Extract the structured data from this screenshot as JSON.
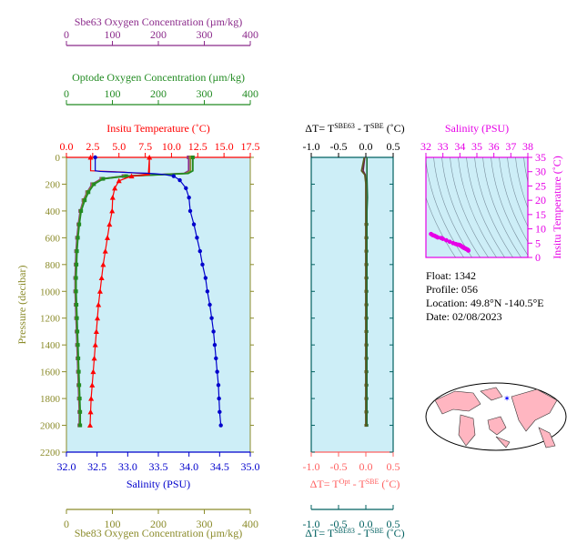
{
  "info": {
    "float": "Float:  1342",
    "profile": "Profile:  056",
    "location": "Location:  49.8°N  -140.5°E",
    "date": "Date:  02/08/2023"
  },
  "colors": {
    "plot_bg": "#cdeef7",
    "temperature": "#ff0000",
    "salinity": "#0000cc",
    "optode_oxygen": "#228b22",
    "sbe63_oxygen": "#8b2a8b",
    "sbe83_oxygen": "#8b8b2a",
    "pressure_axis": "#8b8b2a",
    "magenta": "#e600e6",
    "teal": "#006060",
    "salmon": "#ff6060"
  },
  "chart_data": [
    {
      "id": "main_profile",
      "type": "line",
      "pressure_label": "Pressure (decibar)",
      "pressure_ticks": [
        "0",
        "200",
        "400",
        "600",
        "800",
        "1000",
        "1200",
        "1400",
        "1600",
        "1800",
        "2000",
        "2200"
      ],
      "pressure_range": [
        0,
        2200
      ],
      "temperature_axis": {
        "label": "Insitu Temperature (˚C)",
        "range": [
          0,
          17.5
        ],
        "ticks": [
          "0.0",
          "2.5",
          "5.0",
          "7.5",
          "10.0",
          "12.5",
          "15.0",
          "17.5"
        ]
      },
      "salinity_axis": {
        "label": "Salinity (PSU)",
        "range": [
          32.0,
          35.0
        ],
        "ticks": [
          "32.0",
          "32.5",
          "33.0",
          "33.5",
          "34.0",
          "34.5",
          "35.0"
        ]
      },
      "optode_axis": {
        "label": "Optode Oxygen Concentration (µm/kg)",
        "range": [
          0,
          400
        ],
        "ticks": [
          "0",
          "100",
          "200",
          "300",
          "400"
        ]
      },
      "sbe63_axis": {
        "label": "Sbe63 Oxygen Concentration (µm/kg)",
        "range": [
          0,
          400
        ],
        "ticks": [
          "0",
          "100",
          "200",
          "300",
          "400"
        ]
      },
      "sbe83_axis": {
        "label": "Sbe83 Oxygen Concentration (µm/kg)",
        "range": [
          0,
          400
        ],
        "ticks": [
          "0",
          "100",
          "200",
          "300",
          "400"
        ]
      },
      "series": [
        {
          "key": "temperature",
          "axis": "temperature",
          "points": [
            [
              2.3,
              0
            ],
            [
              2.3,
              100
            ],
            [
              5.5,
              110
            ],
            [
              6.2,
              115
            ],
            [
              7.0,
              120
            ],
            [
              7.8,
              125
            ],
            [
              7.9,
              0
            ],
            [
              7.9,
              130
            ],
            [
              6.2,
              140
            ],
            [
              5.0,
              175
            ],
            [
              4.6,
              230
            ],
            [
              4.4,
              300
            ],
            [
              4.35,
              400
            ],
            [
              4.1,
              500
            ],
            [
              3.9,
              600
            ],
            [
              3.7,
              700
            ],
            [
              3.5,
              800
            ],
            [
              3.35,
              900
            ],
            [
              3.2,
              1000
            ],
            [
              3.05,
              1100
            ],
            [
              2.95,
              1200
            ],
            [
              2.85,
              1300
            ],
            [
              2.75,
              1400
            ],
            [
              2.65,
              1500
            ],
            [
              2.55,
              1600
            ],
            [
              2.45,
              1700
            ],
            [
              2.35,
              1800
            ],
            [
              2.3,
              1900
            ],
            [
              2.25,
              2000
            ]
          ]
        },
        {
          "key": "salinity",
          "axis": "salinity",
          "points": [
            [
              32.47,
              0
            ],
            [
              32.47,
              100
            ],
            [
              32.55,
              105
            ],
            [
              32.7,
              108
            ],
            [
              32.85,
              110
            ],
            [
              33.0,
              113
            ],
            [
              33.15,
              116
            ],
            [
              33.3,
              118
            ],
            [
              33.45,
              122
            ],
            [
              33.6,
              128
            ],
            [
              33.75,
              140
            ],
            [
              33.85,
              170
            ],
            [
              33.95,
              230
            ],
            [
              34.0,
              300
            ],
            [
              34.02,
              400
            ],
            [
              34.08,
              500
            ],
            [
              34.13,
              600
            ],
            [
              34.18,
              700
            ],
            [
              34.22,
              800
            ],
            [
              34.27,
              900
            ],
            [
              34.3,
              1000
            ],
            [
              34.34,
              1100
            ],
            [
              34.37,
              1200
            ],
            [
              34.4,
              1300
            ],
            [
              34.42,
              1400
            ],
            [
              34.44,
              1500
            ],
            [
              34.46,
              1600
            ],
            [
              34.48,
              1700
            ],
            [
              34.49,
              1800
            ],
            [
              34.5,
              1900
            ],
            [
              34.52,
              2000
            ]
          ]
        },
        {
          "key": "optode_oxygen",
          "axis": "optode",
          "points": [
            [
              275,
              0
            ],
            [
              275,
              100
            ],
            [
              265,
              120
            ],
            [
              200,
              130
            ],
            [
              130,
              140
            ],
            [
              80,
              160
            ],
            [
              60,
              200
            ],
            [
              48,
              260
            ],
            [
              40,
              320
            ],
            [
              32,
              400
            ],
            [
              28,
              500
            ],
            [
              25,
              600
            ],
            [
              23,
              700
            ],
            [
              22,
              800
            ],
            [
              21,
              900
            ],
            [
              21,
              1000
            ],
            [
              22,
              1100
            ],
            [
              23,
              1200
            ],
            [
              24,
              1300
            ],
            [
              25,
              1400
            ],
            [
              26,
              1500
            ],
            [
              27,
              1600
            ],
            [
              28,
              1700
            ],
            [
              29,
              1800
            ],
            [
              30,
              1900
            ],
            [
              30,
              2000
            ]
          ]
        },
        {
          "key": "sbe63_oxygen",
          "axis": "sbe63",
          "points": [
            [
              266,
              0
            ],
            [
              266,
              100
            ],
            [
              256,
              120
            ],
            [
              192,
              130
            ],
            [
              124,
              140
            ],
            [
              76,
              160
            ],
            [
              56,
              200
            ],
            [
              45,
              260
            ],
            [
              37,
              320
            ],
            [
              30,
              400
            ],
            [
              26,
              500
            ],
            [
              23,
              600
            ],
            [
              21,
              700
            ],
            [
              20,
              800
            ],
            [
              19,
              900
            ],
            [
              19,
              1000
            ],
            [
              20,
              1100
            ],
            [
              21,
              1200
            ],
            [
              22,
              1300
            ],
            [
              23,
              1400
            ],
            [
              24,
              1500
            ],
            [
              25,
              1600
            ],
            [
              26,
              1700
            ],
            [
              27,
              1800
            ],
            [
              28,
              1900
            ],
            [
              28,
              2000
            ]
          ]
        },
        {
          "key": "sbe83_oxygen",
          "axis": "sbe83",
          "points": [
            [
              270,
              0
            ],
            [
              270,
              100
            ],
            [
              260,
              120
            ],
            [
              196,
              130
            ],
            [
              127,
              140
            ],
            [
              78,
              160
            ],
            [
              58,
              200
            ],
            [
              46,
              260
            ],
            [
              38,
              320
            ],
            [
              31,
              400
            ],
            [
              27,
              500
            ],
            [
              24,
              600
            ],
            [
              22,
              700
            ],
            [
              21,
              800
            ],
            [
              20,
              900
            ],
            [
              20,
              1000
            ],
            [
              21,
              1100
            ],
            [
              22,
              1200
            ],
            [
              23,
              1300
            ],
            [
              24,
              1400
            ],
            [
              25,
              1500
            ],
            [
              26,
              1600
            ],
            [
              27,
              1700
            ],
            [
              28,
              1800
            ],
            [
              29,
              1900
            ],
            [
              29,
              2000
            ]
          ]
        }
      ]
    },
    {
      "id": "delta_t",
      "type": "line",
      "top_axis_label": "ΔT= T^SBE63 - T^SBE (˚C)",
      "mid_axis_label": "ΔT= T^Opt - T^SBE (˚C)",
      "bottom_axis_label": "ΔT= T^SBE83 - T^SBE (˚C)",
      "range": [
        -1.0,
        0.5
      ],
      "ticks": [
        "-1.0",
        "-0.5",
        "0.0",
        "0.5"
      ],
      "series": [
        {
          "key": "sbe63_minus_sbe",
          "points": [
            [
              -0.02,
              0
            ],
            [
              -0.05,
              100
            ],
            [
              -0.01,
              130
            ],
            [
              0.0,
              200
            ],
            [
              0.0,
              400
            ],
            [
              0.0,
              2000
            ]
          ]
        },
        {
          "key": "opt_minus_sbe",
          "points": [
            [
              0.02,
              0
            ],
            [
              0.02,
              150
            ],
            [
              0.03,
              300
            ],
            [
              0.02,
              400
            ],
            [
              0.02,
              2000
            ]
          ]
        },
        {
          "key": "sbe83_minus_sbe",
          "points": [
            [
              -0.03,
              0
            ],
            [
              -0.08,
              100
            ],
            [
              -0.02,
              130
            ],
            [
              0.0,
              200
            ],
            [
              0.0,
              2000
            ]
          ]
        }
      ]
    },
    {
      "id": "ts_diagram",
      "type": "scatter",
      "xlabel": "Salinity (PSU)",
      "ylabel": "Insitu Temperature (˚C)",
      "xrange": [
        32,
        38
      ],
      "yrange": [
        0,
        35
      ],
      "xticks": [
        "32",
        "33",
        "34",
        "35",
        "36",
        "37",
        "38"
      ],
      "yticks": [
        "0",
        "5",
        "10",
        "15",
        "20",
        "25",
        "30",
        "35"
      ],
      "points": [
        [
          32.3,
          8.2
        ],
        [
          32.4,
          7.8
        ],
        [
          32.5,
          7.6
        ],
        [
          32.6,
          7.3
        ],
        [
          32.7,
          7.0
        ],
        [
          32.9,
          6.8
        ],
        [
          33.0,
          6.5
        ],
        [
          33.2,
          6.0
        ],
        [
          33.4,
          5.5
        ],
        [
          33.6,
          5.0
        ],
        [
          33.75,
          4.7
        ],
        [
          33.85,
          4.5
        ],
        [
          33.95,
          4.4
        ],
        [
          34.0,
          4.3
        ],
        [
          34.05,
          4.1
        ],
        [
          34.1,
          3.9
        ],
        [
          34.15,
          3.7
        ],
        [
          34.2,
          3.5
        ],
        [
          34.25,
          3.3
        ],
        [
          34.3,
          3.2
        ],
        [
          34.35,
          3.0
        ],
        [
          34.4,
          2.9
        ],
        [
          34.45,
          2.7
        ],
        [
          34.48,
          2.6
        ],
        [
          34.5,
          2.4
        ]
      ]
    }
  ]
}
